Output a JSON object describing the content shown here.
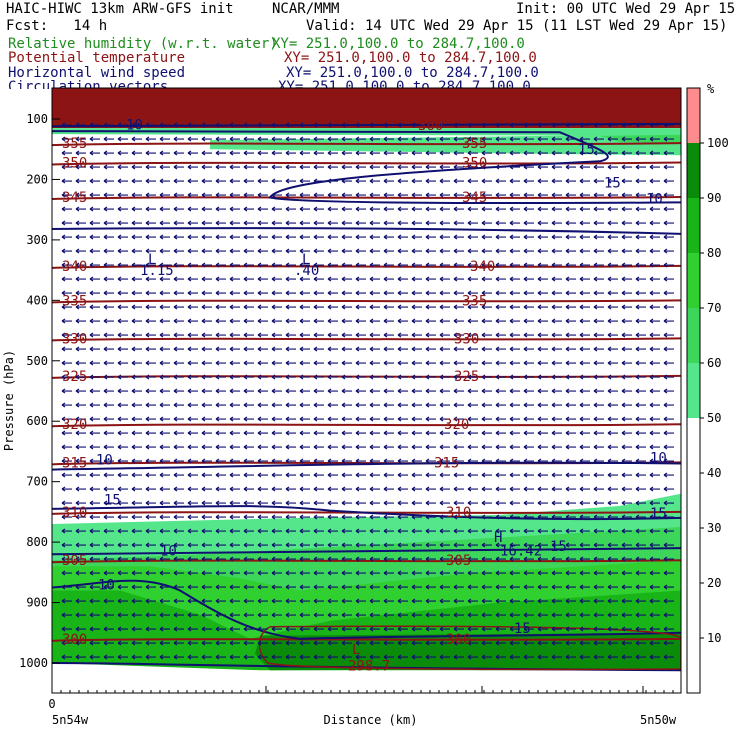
{
  "header": {
    "model": "HAIC-HIWC 13km ARW-GFS init",
    "org": "NCAR/MMM",
    "init": "Init: 00 UTC Wed 29 Apr 15",
    "fcst": "Fcst:   14 h",
    "valid": "Valid: 14 UTC Wed 29 Apr 15 (11 LST Wed 29 Apr 15)",
    "fields": [
      {
        "name": "Relative humidity (w.r.t. water)",
        "xy": "XY= 251.0,100.0 to 284.7,100.0",
        "color": "#1e8c1e"
      },
      {
        "name": "Potential temperature",
        "xy": "XY= 251.0,100.0 to 284.7,100.0",
        "color": "#8c1414"
      },
      {
        "name": "Horizontal wind speed",
        "xy": "XY= 251.0,100.0 to 284.7,100.0",
        "color": "#101070"
      },
      {
        "name": "Circulation vectors",
        "xy": "XY= 251.0,100.0 to 284.7,100.0",
        "color": "#101070"
      }
    ]
  },
  "chart_data": {
    "type": "heatmap",
    "xlabel": "Distance (km)",
    "ylabel": "Pressure (hPa)",
    "x_ticks": [
      "0"
    ],
    "x_end_labels": [
      "5n54w",
      "5n50w"
    ],
    "y_ticks": [
      100,
      200,
      300,
      400,
      500,
      600,
      700,
      800,
      900,
      1000
    ],
    "colorbar": {
      "unit": "%",
      "ticks": [
        10,
        20,
        30,
        40,
        50,
        60,
        70,
        80,
        90,
        100
      ],
      "bands": [
        {
          "from": 0,
          "to": 50,
          "color": "#ffffff"
        },
        {
          "from": 50,
          "to": 60,
          "color": "#55e68c"
        },
        {
          "from": 60,
          "to": 70,
          "color": "#3cd75a"
        },
        {
          "from": 70,
          "to": 80,
          "color": "#30d030"
        },
        {
          "from": 80,
          "to": 90,
          "color": "#18b418"
        },
        {
          "from": 90,
          "to": 100,
          "color": "#0a8c0a"
        },
        {
          "from": 100,
          "to": 110,
          "color": "#ff8c8c"
        }
      ]
    },
    "theta_contours": [
      {
        "label": "355",
        "p": 140
      },
      {
        "label": "350",
        "p": 172
      },
      {
        "label": "345",
        "p": 229
      },
      {
        "label": "340",
        "p": 343
      },
      {
        "label": "335",
        "p": 400
      },
      {
        "label": "330",
        "p": 463
      },
      {
        "label": "325",
        "p": 525
      },
      {
        "label": "320",
        "p": 605
      },
      {
        "label": "315",
        "p": 668
      },
      {
        "label": "310",
        "p": 750
      },
      {
        "label": "305",
        "p": 830
      },
      {
        "label": "300",
        "p": 960
      }
    ],
    "theta_label_extra": [
      "360",
      "350",
      "355",
      "345",
      "340",
      "335",
      "330",
      "325",
      "320",
      "315",
      "310",
      "305",
      "300"
    ],
    "wind_labels": [
      "10",
      "15",
      "15",
      "10",
      "10",
      "15",
      "15",
      "15",
      "10",
      "10",
      "15",
      "10"
    ],
    "extrema": [
      {
        "kind": "L",
        "value": "1.15"
      },
      {
        "kind": "L",
        "value": ".40"
      },
      {
        "kind": "H",
        "value": "16.42"
      },
      {
        "kind": "L",
        "value": "298.7"
      }
    ],
    "wind_vectors": "westward (easterly flow) throughout, shown as arrows pointing left"
  }
}
